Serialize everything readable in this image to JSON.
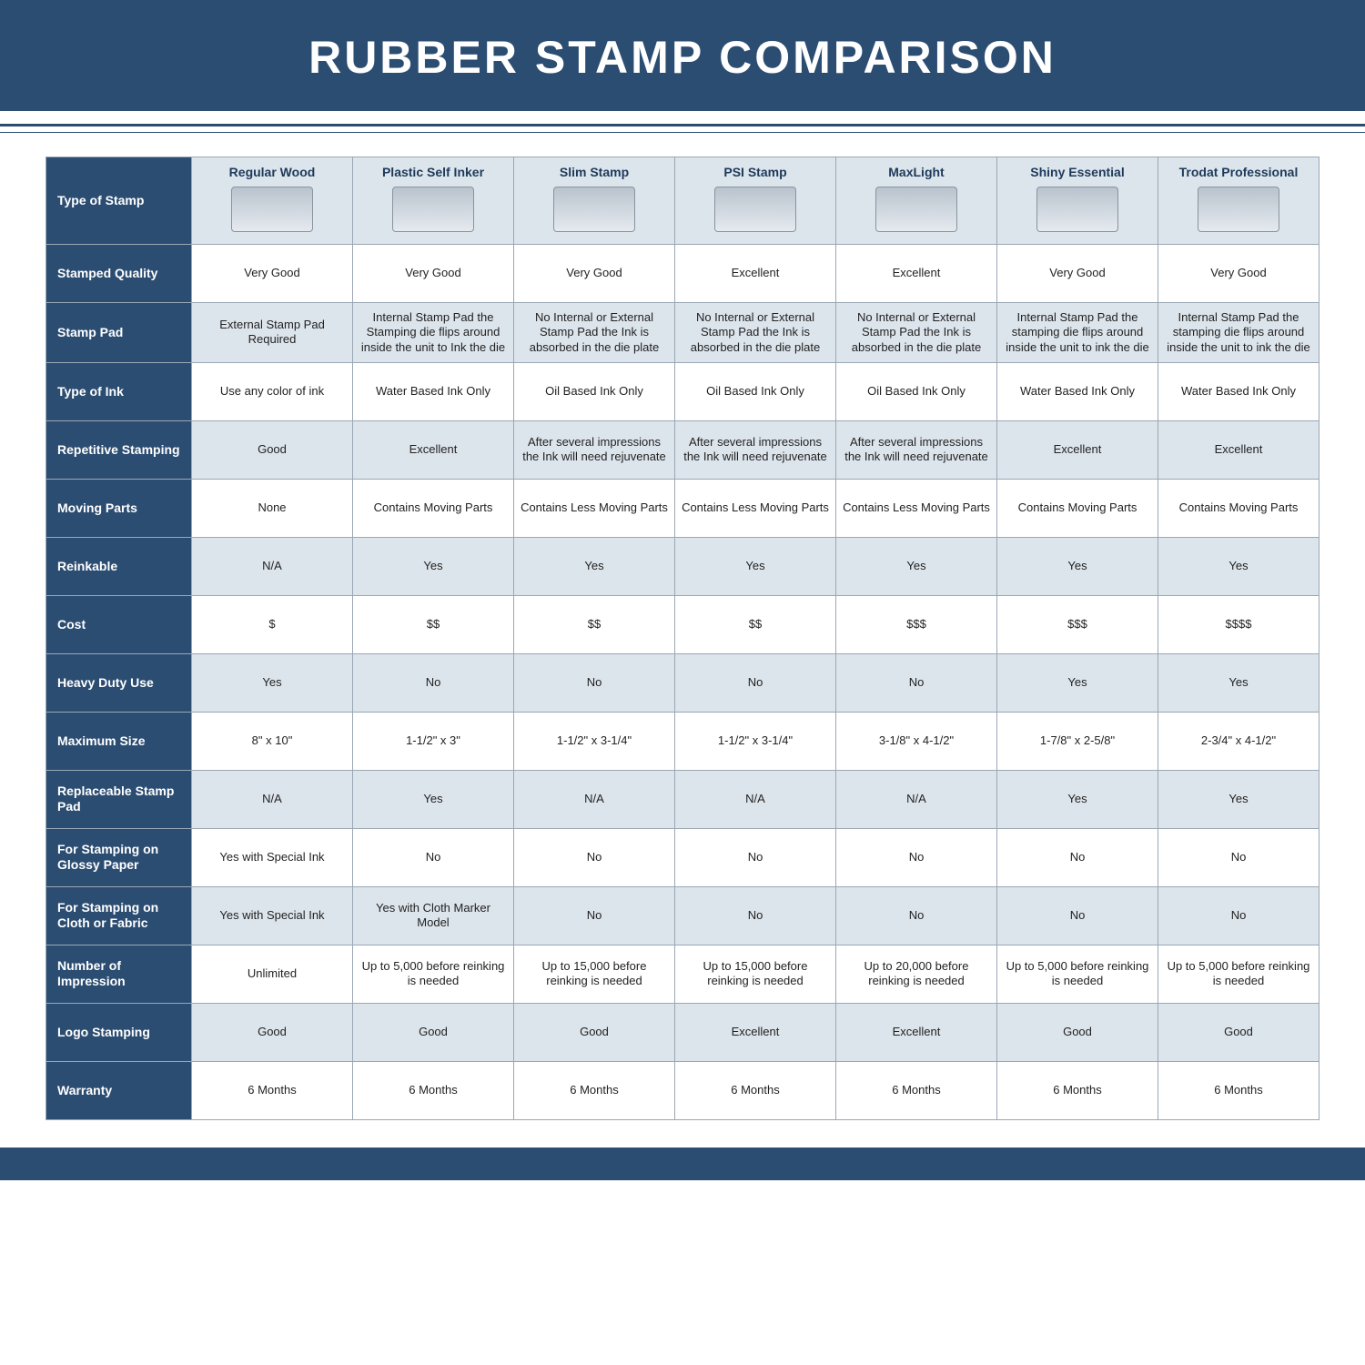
{
  "title": "RUBBER STAMP COMPARISON",
  "colors": {
    "brand": "#2c4d72",
    "header_bg": "#dde5ec",
    "border": "#9aa7b4",
    "text": "#1a1a1a",
    "white": "#ffffff"
  },
  "corner_label": "Type of Stamp",
  "columns": [
    "Regular Wood",
    "Plastic Self Inker",
    "Slim Stamp",
    "PSI Stamp",
    "MaxLight",
    "Shiny Essential",
    "Trodat Professional"
  ],
  "rows": [
    {
      "label": "Stamped Quality",
      "shade": false,
      "cells": [
        "Very Good",
        "Very Good",
        "Very Good",
        "Excellent",
        "Excellent",
        "Very Good",
        "Very Good"
      ]
    },
    {
      "label": "Stamp Pad",
      "shade": true,
      "cells": [
        "External Stamp Pad Required",
        "Internal Stamp Pad the Stamping die flips around inside the unit to Ink the die",
        "No Internal or External Stamp Pad the Ink is absorbed in the die plate",
        "No Internal or External Stamp Pad the Ink is absorbed in the die plate",
        "No Internal or External Stamp Pad the Ink is absorbed in the die plate",
        "Internal Stamp Pad the stamping die flips around inside the unit to ink the die",
        "Internal Stamp Pad the stamping die flips around inside the unit to ink the die"
      ]
    },
    {
      "label": "Type of Ink",
      "shade": false,
      "cells": [
        "Use any color of ink",
        "Water Based Ink Only",
        "Oil Based Ink Only",
        "Oil Based Ink Only",
        "Oil Based Ink Only",
        "Water Based Ink Only",
        "Water Based Ink Only"
      ]
    },
    {
      "label": "Repetitive Stamping",
      "shade": true,
      "cells": [
        "Good",
        "Excellent",
        "After several impressions the Ink will need rejuvenate",
        "After several impressions the Ink will need rejuvenate",
        "After several impressions the Ink will need rejuvenate",
        "Excellent",
        "Excellent"
      ]
    },
    {
      "label": "Moving Parts",
      "shade": false,
      "cells": [
        "None",
        "Contains Moving Parts",
        "Contains Less Moving Parts",
        "Contains Less Moving Parts",
        "Contains Less Moving Parts",
        "Contains Moving Parts",
        "Contains Moving Parts"
      ]
    },
    {
      "label": "Reinkable",
      "shade": true,
      "cells": [
        "N/A",
        "Yes",
        "Yes",
        "Yes",
        "Yes",
        "Yes",
        "Yes"
      ]
    },
    {
      "label": "Cost",
      "shade": false,
      "cells": [
        "$",
        "$$",
        "$$",
        "$$",
        "$$$",
        "$$$",
        "$$$$"
      ]
    },
    {
      "label": "Heavy Duty Use",
      "shade": true,
      "cells": [
        "Yes",
        "No",
        "No",
        "No",
        "No",
        "Yes",
        "Yes"
      ]
    },
    {
      "label": "Maximum Size",
      "shade": false,
      "cells": [
        "8\" x 10\"",
        "1-1/2\" x 3\"",
        "1-1/2\" x 3-1/4\"",
        "1-1/2\" x 3-1/4\"",
        "3-1/8\" x 4-1/2\"",
        "1-7/8\" x 2-5/8\"",
        "2-3/4\" x 4-1/2\""
      ]
    },
    {
      "label": "Replaceable Stamp Pad",
      "shade": true,
      "cells": [
        "N/A",
        "Yes",
        "N/A",
        "N/A",
        "N/A",
        "Yes",
        "Yes"
      ]
    },
    {
      "label": "For Stamping on Glossy Paper",
      "shade": false,
      "cells": [
        "Yes with Special Ink",
        "No",
        "No",
        "No",
        "No",
        "No",
        "No"
      ]
    },
    {
      "label": "For Stamping on Cloth or Fabric",
      "shade": true,
      "cells": [
        "Yes with Special Ink",
        "Yes with Cloth Marker Model",
        "No",
        "No",
        "No",
        "No",
        "No"
      ]
    },
    {
      "label": "Number of Impression",
      "shade": false,
      "cells": [
        "Unlimited",
        "Up to 5,000 before reinking is needed",
        "Up to 15,000 before reinking is needed",
        "Up to 15,000 before reinking is needed",
        "Up to 20,000 before reinking is needed",
        "Up to 5,000 before reinking is needed",
        "Up to 5,000 before reinking is needed"
      ]
    },
    {
      "label": "Logo Stamping",
      "shade": true,
      "cells": [
        "Good",
        "Good",
        "Good",
        "Excellent",
        "Excellent",
        "Good",
        "Good"
      ]
    },
    {
      "label": "Warranty",
      "shade": false,
      "cells": [
        "6 Months",
        "6 Months",
        "6 Months",
        "6 Months",
        "6 Months",
        "6 Months",
        "6 Months"
      ]
    }
  ]
}
